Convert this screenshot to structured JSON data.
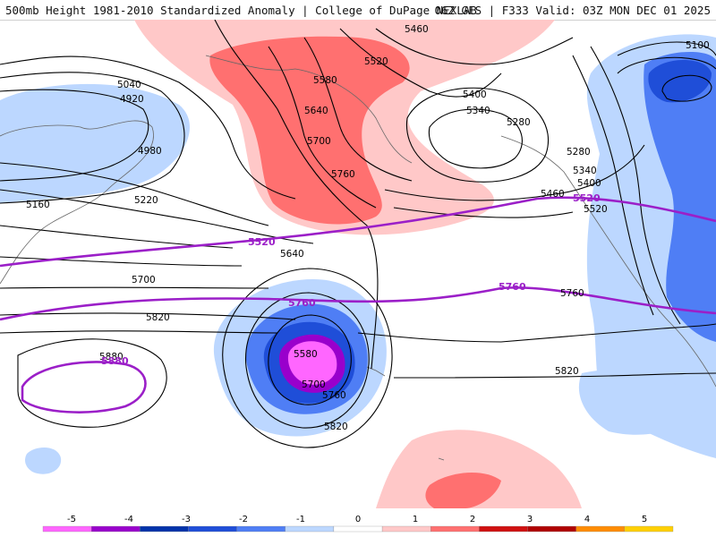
{
  "header": {
    "title": "500mb Height 1981-2010 Standardized Anomaly | College of DuPage NEXLAB",
    "run_info": "06Z GFS | F333 Valid: 03Z MON DEC 01 2025"
  },
  "map": {
    "contour_labels": [
      "5460",
      "5520",
      "5580",
      "5640",
      "5700",
      "5760",
      "5400",
      "5340",
      "5280",
      "5100",
      "5040",
      "4920",
      "4980",
      "5160",
      "5220",
      "5880",
      "5820",
      "5820",
      "5280",
      "5340",
      "5400",
      "5460",
      "5520",
      "5760",
      "5700",
      "5640",
      "5580",
      "5700",
      "5760",
      "5820"
    ],
    "highlighted_labels": [
      "5520",
      "5520",
      "5760",
      "5760",
      "5880"
    ]
  },
  "colorbar": {
    "ticks": [
      "-5",
      "-4",
      "-3",
      "-2",
      "-1",
      "0",
      "1",
      "2",
      "3",
      "4",
      "5"
    ],
    "colors": [
      "#ff66ff",
      "#9900cc",
      "#0033aa",
      "#1f4ed8",
      "#4f7ef5",
      "#bcd7ff",
      "#ffffff",
      "#ffc8c8",
      "#ff7070",
      "#d01010",
      "#b00000",
      "#ff8c00",
      "#ffd000"
    ],
    "contour_color": "#000000",
    "highlight_color": "#9b1fc8"
  }
}
